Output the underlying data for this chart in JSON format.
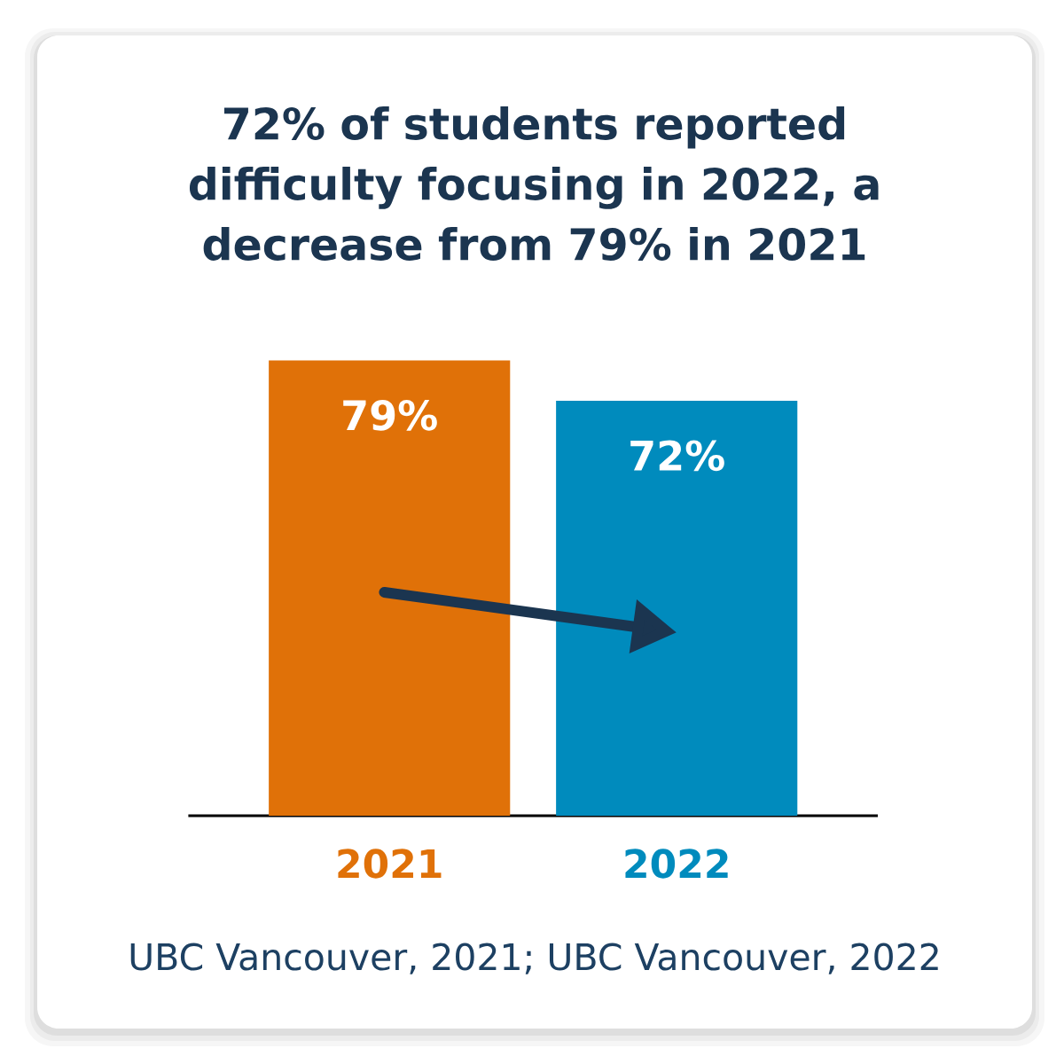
{
  "chart_data": {
    "type": "bar",
    "title": "72% of students reported difficulty focusing in 2022, a decrease from 79% in 2021",
    "categories": [
      "2021",
      "2022"
    ],
    "values": [
      79,
      72
    ],
    "colors": [
      "#e07108",
      "#008bbd"
    ],
    "value_labels": [
      "79%",
      "72%"
    ],
    "ylim": [
      0,
      80
    ],
    "tick_labels": "x",
    "annotations": [
      "UBC Vancouver, 2021; UBC Vancouver, 2022"
    ]
  }
}
